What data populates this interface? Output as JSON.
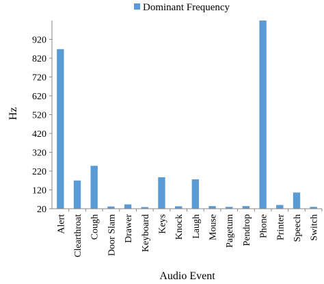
{
  "chart_data": {
    "type": "bar",
    "xlabel": "Audio Event",
    "ylabel": "Hz",
    "ylim": [
      20,
      1020
    ],
    "yticks": [
      20,
      120,
      220,
      320,
      420,
      520,
      620,
      720,
      820,
      920
    ],
    "grid": false,
    "legend": "top",
    "categories": [
      "Alert",
      "Clearthroat",
      "Cough",
      "Door Slam",
      "Drawer",
      "Keyboard",
      "Keys",
      "Knock",
      "Laugh",
      "Mouse",
      "Pagetum",
      "Pendrop",
      "Phone",
      "Printer",
      "Speech",
      "Switch"
    ],
    "series": [
      {
        "name": "Dominant Frequency",
        "color": "#5b9bd5",
        "values": [
          868,
          170,
          248,
          32,
          43,
          29,
          187,
          33,
          176,
          34,
          30,
          34,
          1020,
          40,
          106,
          30
        ]
      }
    ]
  }
}
